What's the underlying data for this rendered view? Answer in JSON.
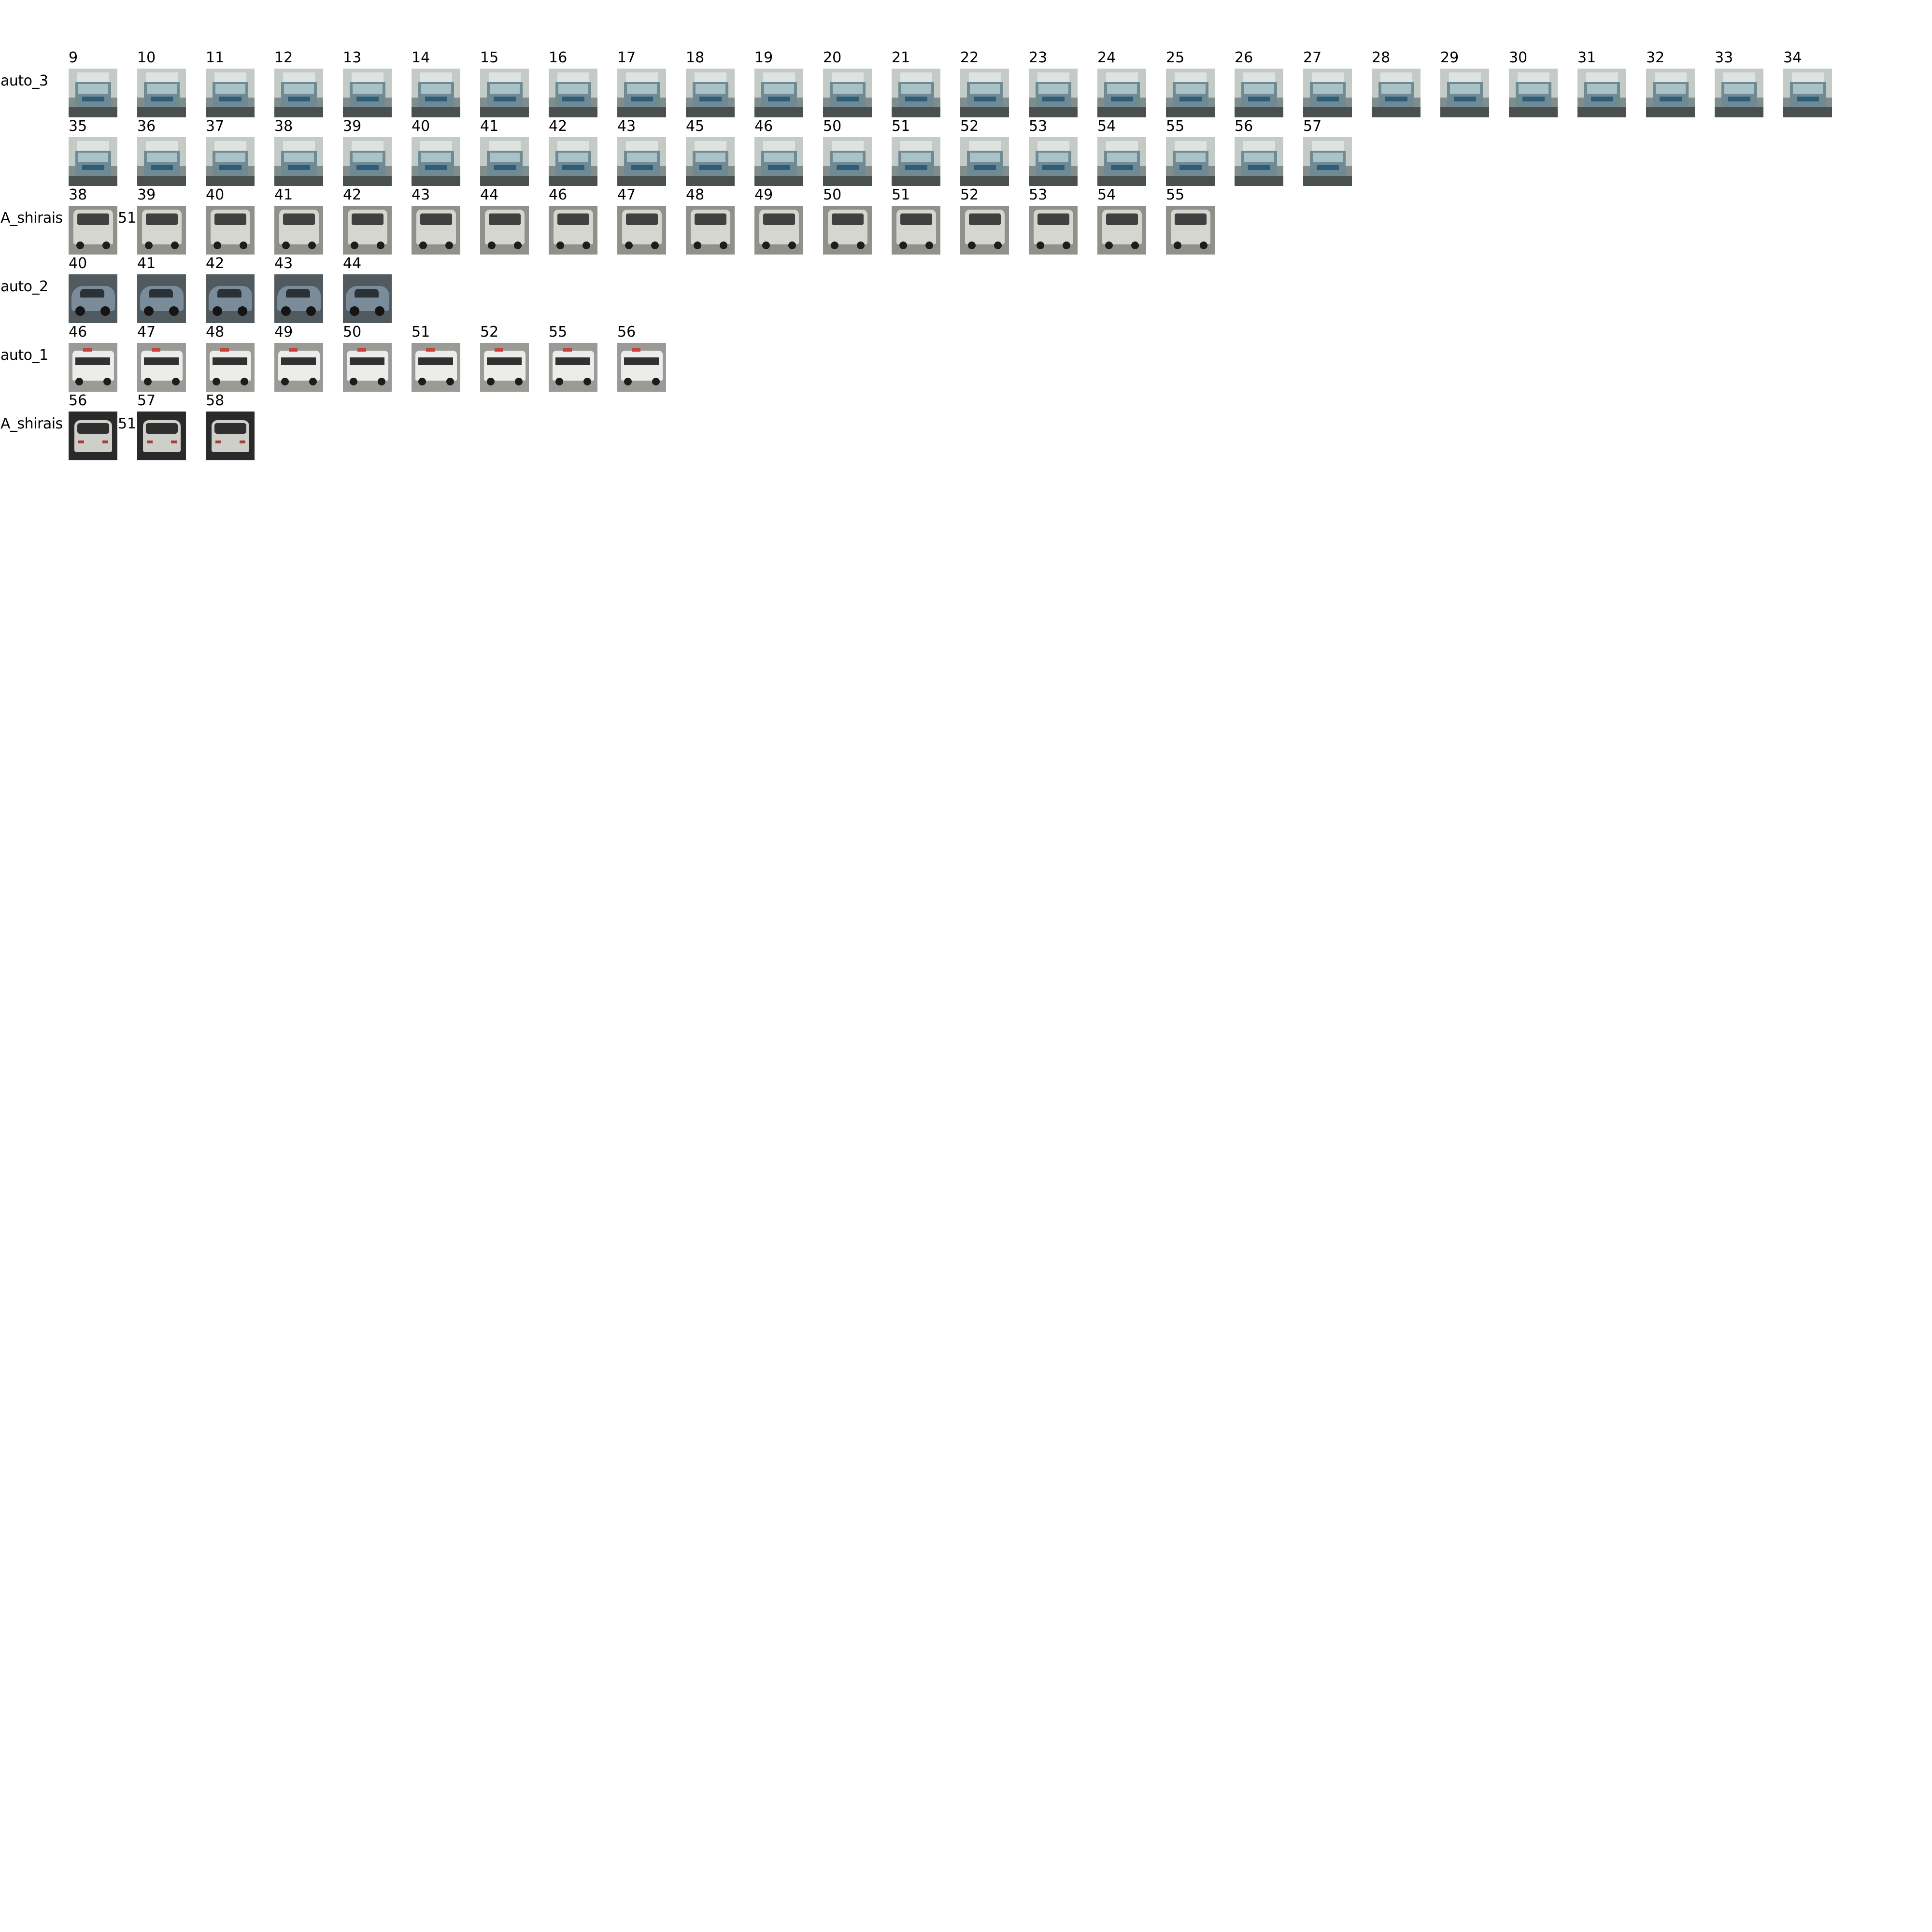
{
  "rows": [
    {
      "label": "auto_3",
      "vehicle": "truck",
      "side_number": "",
      "frames": [
        "9",
        "10",
        "11",
        "12",
        "13",
        "14",
        "15",
        "16",
        "17",
        "18",
        "19",
        "20",
        "21",
        "22",
        "23",
        "24",
        "25",
        "26",
        "27",
        "28",
        "29",
        "30",
        "31",
        "32",
        "33",
        "34"
      ]
    },
    {
      "label": "",
      "vehicle": "truck",
      "side_number": "",
      "frames": [
        "35",
        "36",
        "37",
        "38",
        "39",
        "40",
        "41",
        "42",
        "43",
        "45",
        "46",
        "50",
        "51",
        "52",
        "53",
        "54",
        "55",
        "56",
        "57"
      ]
    },
    {
      "label": "A_shirais",
      "vehicle": "van",
      "side_number": "51",
      "frames": [
        "38",
        "39",
        "40",
        "41",
        "42",
        "43",
        "44",
        "46",
        "47",
        "48",
        "49",
        "50",
        "51",
        "52",
        "53",
        "54",
        "55"
      ]
    },
    {
      "label": "auto_2",
      "vehicle": "car",
      "side_number": "",
      "frames": [
        "40",
        "41",
        "42",
        "43",
        "44"
      ]
    },
    {
      "label": "auto_1",
      "vehicle": "amb",
      "side_number": "",
      "frames": [
        "46",
        "47",
        "48",
        "49",
        "50",
        "51",
        "52",
        "55",
        "56"
      ]
    },
    {
      "label": "A_shirais",
      "vehicle": "dark-van",
      "side_number": "51",
      "frames": [
        "56",
        "57",
        "58"
      ]
    }
  ]
}
